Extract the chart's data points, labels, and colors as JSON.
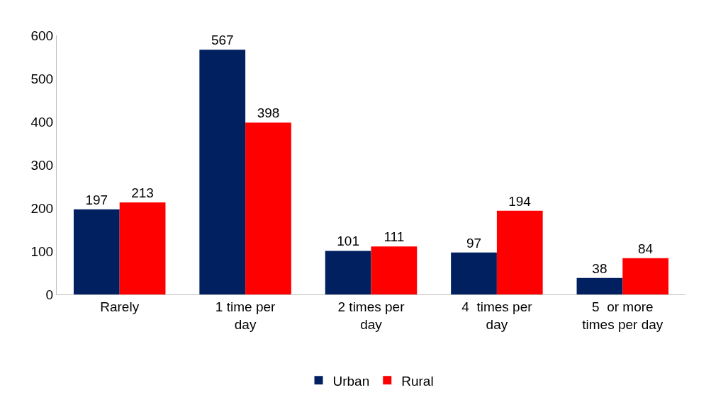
{
  "chart_data": {
    "type": "bar",
    "categories": [
      "Rarely",
      "1 time per day",
      "2 times per day",
      "4  times per day",
      "5  or more times per day"
    ],
    "series": [
      {
        "name": "Urban",
        "color": "#002060",
        "values": [
          197,
          567,
          101,
          97,
          38
        ]
      },
      {
        "name": "Rural",
        "color": "#ff0000",
        "values": [
          213,
          398,
          111,
          194,
          84
        ]
      }
    ],
    "ylim": [
      0,
      600
    ],
    "yticks": [
      0,
      100,
      200,
      300,
      400,
      500,
      600
    ],
    "legend": "bottom",
    "data_labels": true
  }
}
